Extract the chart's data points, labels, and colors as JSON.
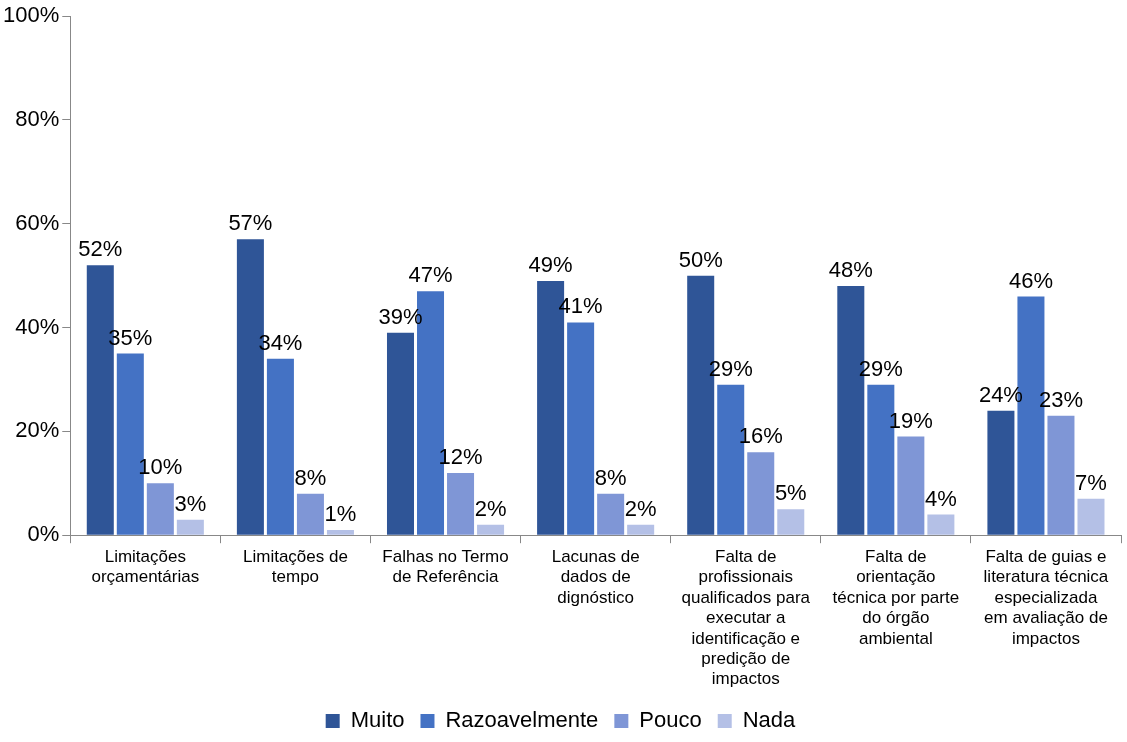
{
  "chart_data": {
    "type": "bar",
    "categories": [
      "Limitações orçamentárias",
      "Limitações de tempo",
      "Falhas no Termo de Referência",
      "Lacunas de dados de dignóstico",
      "Falta de profissionais qualificados para executar a identificação e predição de impactos",
      "Falta de orientação técnica por parte do órgão ambiental",
      "Falta de guias e literatura técnica especializada em avaliação de impactos"
    ],
    "series": [
      {
        "name": "Muito",
        "color": "#2f5597",
        "values": [
          52,
          57,
          39,
          49,
          50,
          48,
          24
        ],
        "value_labels": [
          "52%",
          "57%",
          "39%",
          "49%",
          "50%",
          "48%",
          "24%"
        ]
      },
      {
        "name": "Razoavelmente",
        "color": "#4472c4",
        "values": [
          35,
          34,
          47,
          41,
          29,
          29,
          46
        ],
        "value_labels": [
          "35%",
          "34%",
          "47%",
          "41%",
          "29%",
          "29%",
          "46%"
        ]
      },
      {
        "name": "Pouco",
        "color": "#7f96d6",
        "values": [
          10,
          8,
          12,
          8,
          16,
          19,
          23
        ],
        "value_labels": [
          "10%",
          "8%",
          "12%",
          "8%",
          "16%",
          "19%",
          "23%"
        ]
      },
      {
        "name": "Nada",
        "color": "#b4c0e6",
        "values": [
          3,
          1,
          2,
          2,
          5,
          4,
          7
        ],
        "value_labels": [
          "3%",
          "1%",
          "2%",
          "2%",
          "5%",
          "4%",
          "7%"
        ]
      }
    ],
    "ylim": [
      0,
      100
    ],
    "yticks": [
      {
        "value": 0,
        "label": "0%"
      },
      {
        "value": 20,
        "label": "20%"
      },
      {
        "value": 40,
        "label": "40%"
      },
      {
        "value": 60,
        "label": "60%"
      },
      {
        "value": 80,
        "label": "80%"
      },
      {
        "value": 100,
        "label": "100%"
      }
    ],
    "grid": false,
    "legend": "bottom"
  }
}
